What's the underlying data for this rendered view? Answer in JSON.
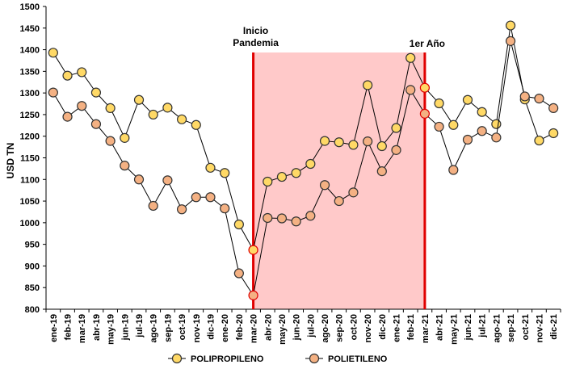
{
  "chart_data": {
    "type": "line",
    "title": "",
    "xlabel": "",
    "ylabel": "USD TN",
    "ylim": [
      800,
      1500
    ],
    "yticks": [
      800,
      850,
      900,
      950,
      1000,
      1050,
      1100,
      1150,
      1200,
      1250,
      1300,
      1350,
      1400,
      1450,
      1500
    ],
    "grid": false,
    "legend_position": "bottom",
    "categories": [
      "ene-19",
      "feb-19",
      "mar-19",
      "abr-19",
      "may-19",
      "jun-19",
      "jul-19",
      "ago-19",
      "sep-19",
      "oct-19",
      "nov-19",
      "dic-19",
      "ene-20",
      "feb-20",
      "mar-20",
      "abr-20",
      "may-20",
      "jun-20",
      "jul-20",
      "ago-20",
      "sep-20",
      "oct-20",
      "nov-20",
      "dic-20",
      "ene-21",
      "feb-21",
      "mar-21",
      "abr-21",
      "may-21",
      "jun-21",
      "jul-21",
      "ago-21",
      "sep-21",
      "oct-21",
      "nov-21",
      "dic-21"
    ],
    "series": [
      {
        "name": "POLIPROPILENO",
        "color": "#FFD966",
        "values": [
          1393,
          1340,
          1348,
          1301,
          1265,
          1196,
          1284,
          1250,
          1266,
          1239,
          1226,
          1127,
          1115,
          996,
          937,
          1095,
          1106,
          1115,
          1136,
          1189,
          1186,
          1180,
          1318,
          1177,
          1219,
          1381,
          1312,
          1276,
          1226,
          1284,
          1256,
          1228,
          1456,
          1285,
          1190,
          1207
        ]
      },
      {
        "name": "POLIETILENO",
        "color": "#F4B183",
        "values": [
          1301,
          1245,
          1270,
          1228,
          1189,
          1132,
          1100,
          1039,
          1098,
          1031,
          1059,
          1059,
          1033,
          883,
          832,
          1011,
          1010,
          1003,
          1016,
          1087,
          1050,
          1070,
          1188,
          1119,
          1168,
          1307,
          1252,
          1222,
          1122,
          1192,
          1212,
          1197,
          1420,
          1292,
          1287,
          1265
        ]
      }
    ],
    "shaded_region": {
      "from": "mar-20",
      "to": "mar-21",
      "color": "#FFC9C9"
    },
    "annotations": [
      {
        "text_lines": [
          "Inicio",
          "Pandemia"
        ],
        "at": "mar-20",
        "line_color": "#E00000"
      },
      {
        "text_lines": [
          "1er Año"
        ],
        "at": "mar-21",
        "line_color": "#E00000"
      }
    ]
  }
}
